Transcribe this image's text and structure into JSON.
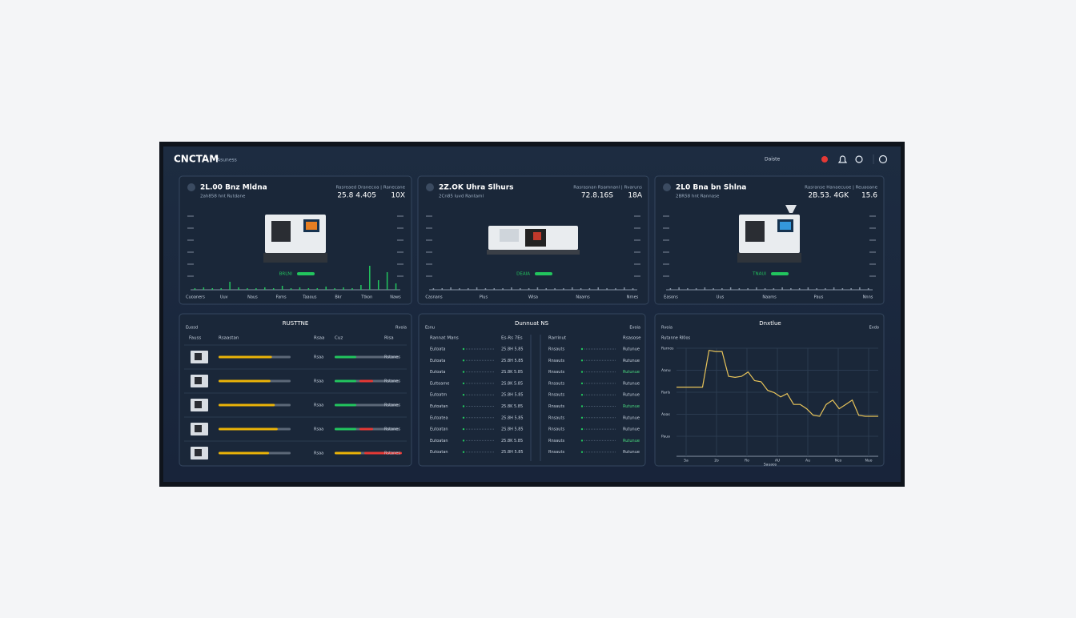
{
  "header": {
    "logo": "CNCTAM",
    "subtitle": "Asuness",
    "user": "Daiste"
  },
  "machines": [
    {
      "title": "2L.00 Bnz Mldna",
      "subtitle": "2ah858 hnt Rutdane",
      "stat_label": "Rasreaed  Dranecoa  |  Ranecane",
      "stat1": "25.8 4.405",
      "stat2": "10X",
      "status": "BRLNI",
      "axis": [
        "Cuoaners",
        "Uuv",
        "Naus",
        "Fams",
        "Taaous",
        "Bkr",
        "Ttkon",
        "Naws"
      ],
      "activity": [
        2,
        3,
        2,
        2,
        10,
        3,
        2,
        2,
        3,
        2,
        5,
        2,
        3,
        2,
        2,
        4,
        2,
        3,
        2,
        6,
        30,
        12,
        22,
        8
      ]
    },
    {
      "title": "2Z.OK Uhra Slhurs",
      "subtitle": "2Cn85 luvd Rantaml",
      "stat_label": "Rasrasnan  Rsamnanl  |  Rvaruns",
      "stat1": "72.8.16S",
      "stat2": "18A",
      "status": "DEAIA",
      "axis": [
        "Casnans",
        "Plus",
        "Wlsa",
        "Naams",
        "Nrnes"
      ],
      "activity": [
        2,
        2,
        3,
        2,
        2,
        3,
        2,
        2,
        2,
        3,
        2,
        2,
        3,
        2,
        2,
        2,
        3,
        2,
        2,
        3,
        2,
        2,
        3,
        2
      ]
    },
    {
      "title": "2L0 Bna bn Shlna",
      "subtitle": "2BR58 hnt Rannase",
      "stat_label": "Rasranse  Hanaecuoe  |  Reuaoane",
      "stat1": "2B.53. 4GK",
      "stat2": "15.6",
      "status": "TNAUI",
      "axis": [
        "Easons",
        "Uus",
        "Naams",
        "Paus",
        "Nnns"
      ],
      "activity": [
        2,
        3,
        2,
        2,
        3,
        2,
        2,
        3,
        2,
        2,
        3,
        2,
        2,
        3,
        2,
        2,
        3,
        2,
        2,
        3,
        2,
        2,
        3,
        2
      ]
    }
  ],
  "queue": {
    "title": "RUSTTNE",
    "left": "Euosd",
    "right": "Rvoia",
    "columns": [
      "Fauss",
      "Rsaastan",
      "Rsaa",
      "Cuz",
      "Rlsa"
    ],
    "rows": [
      {
        "progress": 74,
        "label": "Rsaa",
        "status_bars": [
          {
            "value": 27,
            "color": "#22c55e"
          }
        ],
        "note": "Rstanes"
      },
      {
        "progress": 72,
        "label": "Rsaa",
        "status_bars": [
          {
            "value": 27,
            "color": "#22c55e"
          },
          {
            "value": 17,
            "color": "#e53935"
          }
        ],
        "note": "Rstanes"
      },
      {
        "progress": 78,
        "label": "Rsaa",
        "status_bars": [
          {
            "value": 27,
            "color": "#22c55e"
          }
        ],
        "note": "Rstanes"
      },
      {
        "progress": 82,
        "label": "Rsaa",
        "status_bars": [
          {
            "value": 27,
            "color": "#22c55e"
          },
          {
            "value": 17,
            "color": "#e53935"
          }
        ],
        "note": "Rstanes"
      },
      {
        "progress": 70,
        "label": "Rsaa",
        "status_bars": [
          {
            "value": 33,
            "color": "#eab308"
          },
          {
            "value": 47,
            "color": "#e53935"
          }
        ],
        "note": "Rstanes"
      }
    ]
  },
  "jobs": {
    "title": "Dunnuat NS",
    "left": "Esnu",
    "right": "Evoia",
    "left_header": [
      "Rannat Mans",
      "Es-Rs 7Es"
    ],
    "right_header": [
      "Rarrinut",
      "Rsasose"
    ],
    "left_rows": [
      [
        "Eutoata",
        "25.8H 5.85"
      ],
      [
        "Eutoata",
        "25.8H 5.85"
      ],
      [
        "Eutoata",
        "2S.8K 5.85"
      ],
      [
        "Euttoame",
        "2S.8K 5.85"
      ],
      [
        "Eutoatm",
        "25.8H 5.85"
      ],
      [
        "Eutoatan",
        "25.8K 5.85"
      ],
      [
        "Eutoatea",
        "25.8H 5.85"
      ],
      [
        "Eutoatan",
        "2S.8H 5.85"
      ],
      [
        "Eutoatan",
        "25.8K 5.85"
      ],
      [
        "Eutoatan",
        "25.8H 5.85"
      ]
    ],
    "right_rows": [
      [
        "Rnsauts",
        "Rutunue"
      ],
      [
        "Rnsauts",
        "Rutunue"
      ],
      [
        "Rnsauts",
        "Rutunue"
      ],
      [
        "Rnsauts",
        "Rutunue"
      ],
      [
        "Rnsauts",
        "Rutunue"
      ],
      [
        "Rnsauts",
        "Rutunue"
      ],
      [
        "Rnsauts",
        "Rutunue"
      ],
      [
        "Rnsauts",
        "Rutunue"
      ],
      [
        "Rnsauts",
        "Rutunue"
      ],
      [
        "Rnsauts",
        "Rutunue"
      ]
    ]
  },
  "trend": {
    "title": "Dnxtlue",
    "left": "Rvoia",
    "right": "Evdo",
    "y_title": "Rutanne Rl0os",
    "yticks": [
      "Rurnos",
      "Aanu",
      "Rarls",
      "Aoas",
      "Paua"
    ],
    "xticks": [
      "5a",
      "2o",
      "Ro",
      "AU",
      "Au",
      "Nco",
      "Nuo"
    ],
    "x_title": "Sauaos",
    "ylim": [
      0,
      100
    ],
    "values": [
      64,
      64,
      64,
      64,
      64,
      98,
      97,
      97,
      74,
      73,
      74,
      78,
      70,
      69,
      61,
      59,
      55,
      58,
      48,
      48,
      44,
      38,
      37,
      48,
      52,
      44,
      48,
      52,
      38,
      37,
      37,
      37
    ]
  }
}
